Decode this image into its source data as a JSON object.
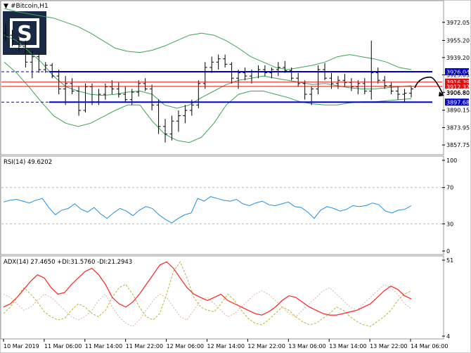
{
  "window_title": "#Bitcoin,H1",
  "logo": {
    "letters": "S",
    "name": "broker-logo"
  },
  "colors": {
    "price_bars": "#000000",
    "bollinger": "#3aa356",
    "support_resistance": "#0000cc",
    "red_levels": "#e01010",
    "arrow": "#000000",
    "rsi": "#1e8fe0",
    "adx_main": "#ff2020",
    "plus_di": "#b8b530",
    "minus_di": "#e0b0a0",
    "level_badge": "#0000cc",
    "red_badge": "#e01010"
  },
  "chart_data": [
    {
      "type": "candlestick",
      "name": "main-price",
      "symbol": "#Bitcoin",
      "timeframe": "H1",
      "x": [
        "10 Mar 2019",
        "11 Mar 06:00",
        "11 Mar 14:00",
        "11 Mar 22:00",
        "12 Mar 06:00",
        "12 Mar 14:00",
        "12 Mar 22:00",
        "13 Mar 06:00",
        "13 Mar 14:00",
        "13 Mar 22:00",
        "14 Mar 06:00"
      ],
      "ylim": [
        3850,
        3985
      ],
      "y_ticks": [
        "3972.05",
        "3955.20",
        "3939.20",
        "3923.05",
        "3906.80",
        "3890.15",
        "3873.95",
        "3857.75"
      ],
      "bars": [
        [
          3962,
          3970,
          3955,
          3960
        ],
        [
          3960,
          3965,
          3950,
          3955
        ],
        [
          3955,
          3958,
          3945,
          3950
        ],
        [
          3950,
          3955,
          3930,
          3935
        ],
        [
          3935,
          3945,
          3920,
          3940
        ],
        [
          3940,
          3943,
          3925,
          3928
        ],
        [
          3928,
          3935,
          3925,
          3932
        ],
        [
          3932,
          3934,
          3920,
          3922
        ],
        [
          3922,
          3928,
          3905,
          3910
        ],
        [
          3910,
          3922,
          3895,
          3915
        ],
        [
          3915,
          3920,
          3905,
          3908
        ],
        [
          3908,
          3912,
          3885,
          3890
        ],
        [
          3890,
          3915,
          3888,
          3912
        ],
        [
          3912,
          3915,
          3895,
          3898
        ],
        [
          3898,
          3910,
          3895,
          3905
        ],
        [
          3905,
          3915,
          3900,
          3912
        ],
        [
          3912,
          3918,
          3905,
          3910
        ],
        [
          3910,
          3916,
          3902,
          3905
        ],
        [
          3905,
          3912,
          3898,
          3900
        ],
        [
          3900,
          3910,
          3895,
          3907
        ],
        [
          3907,
          3918,
          3903,
          3915
        ],
        [
          3915,
          3920,
          3908,
          3910
        ],
        [
          3910,
          3914,
          3890,
          3895
        ],
        [
          3895,
          3900,
          3868,
          3875
        ],
        [
          3875,
          3882,
          3860,
          3868
        ],
        [
          3868,
          3885,
          3862,
          3880
        ],
        [
          3880,
          3890,
          3870,
          3885
        ],
        [
          3885,
          3895,
          3878,
          3890
        ],
        [
          3890,
          3900,
          3885,
          3895
        ],
        [
          3895,
          3918,
          3892,
          3915
        ],
        [
          3915,
          3935,
          3910,
          3930
        ],
        [
          3930,
          3940,
          3925,
          3935
        ],
        [
          3935,
          3942,
          3928,
          3938
        ],
        [
          3938,
          3942,
          3930,
          3933
        ],
        [
          3933,
          3935,
          3915,
          3920
        ],
        [
          3920,
          3928,
          3910,
          3925
        ],
        [
          3925,
          3930,
          3918,
          3922
        ],
        [
          3922,
          3928,
          3915,
          3926
        ],
        [
          3926,
          3932,
          3920,
          3928
        ],
        [
          3928,
          3932,
          3922,
          3925
        ],
        [
          3925,
          3930,
          3920,
          3928
        ],
        [
          3928,
          3935,
          3922,
          3930
        ],
        [
          3930,
          3936,
          3925,
          3927
        ],
        [
          3927,
          3930,
          3918,
          3920
        ],
        [
          3920,
          3925,
          3912,
          3915
        ],
        [
          3915,
          3918,
          3900,
          3905
        ],
        [
          3905,
          3912,
          3895,
          3910
        ],
        [
          3910,
          3932,
          3905,
          3928
        ],
        [
          3928,
          3934,
          3918,
          3920
        ],
        [
          3920,
          3925,
          3910,
          3915
        ],
        [
          3915,
          3922,
          3910,
          3918
        ],
        [
          3918,
          3924,
          3912,
          3916
        ],
        [
          3916,
          3920,
          3908,
          3912
        ],
        [
          3912,
          3918,
          3905,
          3915
        ],
        [
          3915,
          3920,
          3905,
          3908
        ],
        [
          3908,
          3955,
          3900,
          3925
        ],
        [
          3925,
          3930,
          3915,
          3918
        ],
        [
          3918,
          3922,
          3910,
          3913
        ],
        [
          3913,
          3916,
          3905,
          3908
        ],
        [
          3908,
          3912,
          3900,
          3905
        ],
        [
          3905,
          3910,
          3898,
          3906
        ],
        [
          3906,
          3912,
          3902,
          3910
        ]
      ],
      "bollinger": {
        "upper": [
          3985,
          3982,
          3980,
          3978,
          3976,
          3972,
          3968,
          3962,
          3955,
          3948,
          3945,
          3944,
          3946,
          3950,
          3955,
          3960,
          3962,
          3960,
          3955,
          3948,
          3940,
          3935,
          3930,
          3928,
          3930,
          3932,
          3935,
          3940,
          3942,
          3940,
          3938,
          3935,
          3930,
          3928
        ],
        "middle": [
          3960,
          3955,
          3945,
          3935,
          3922,
          3912,
          3908,
          3905,
          3904,
          3905,
          3907,
          3908,
          3905,
          3895,
          3892,
          3895,
          3902,
          3908,
          3914,
          3918,
          3920,
          3922,
          3920,
          3918,
          3916,
          3914,
          3915,
          3913,
          3911,
          3910,
          3910,
          3911,
          3912,
          3913
        ],
        "lower": [
          3935,
          3925,
          3912,
          3898,
          3885,
          3878,
          3875,
          3878,
          3884,
          3890,
          3895,
          3895,
          3880,
          3868,
          3862,
          3860,
          3865,
          3878,
          3895,
          3905,
          3908,
          3908,
          3905,
          3902,
          3898,
          3896,
          3895,
          3895,
          3897,
          3898,
          3898,
          3899,
          3900,
          3901
        ]
      },
      "levels": [
        {
          "name": "resistance",
          "value": 3926.04,
          "label": "3926.04",
          "kind": "blue"
        },
        {
          "name": "red-upper",
          "value": 3916.39,
          "label": "3916.39",
          "kind": "red"
        },
        {
          "name": "red-lower",
          "value": 3912.32,
          "label": "3912.32",
          "kind": "red"
        },
        {
          "name": "support",
          "value": 3897.68,
          "label": "3897.68",
          "kind": "blue"
        }
      ],
      "current_price": "3906.80",
      "projected_path": [
        3911,
        3921,
        3916,
        3905
      ]
    },
    {
      "type": "line",
      "name": "rsi",
      "title": "RSI(14) 49.6202",
      "ylim": [
        0,
        100
      ],
      "y_ticks": [
        "100",
        "70",
        "30",
        "0"
      ],
      "levels": [
        70,
        30
      ],
      "series": [
        {
          "name": "RSI",
          "values": [
            54,
            56,
            57,
            55,
            53,
            56,
            58,
            48,
            40,
            45,
            47,
            52,
            46,
            43,
            48,
            41,
            36,
            42,
            47,
            44,
            39,
            45,
            49,
            47,
            40,
            35,
            31,
            36,
            40,
            42,
            58,
            55,
            60,
            58,
            56,
            55,
            57,
            52,
            50,
            53,
            55,
            51,
            50,
            52,
            54,
            49,
            48,
            43,
            36,
            45,
            49,
            47,
            44,
            46,
            50,
            49,
            50,
            53,
            51,
            44,
            42,
            45,
            46,
            50
          ]
        }
      ]
    },
    {
      "type": "line",
      "name": "adx",
      "title": "ADX(14) 27.4650 +DI:31.5760 -DI:21.2943",
      "ylim": [
        4,
        51
      ],
      "y_ticks": [
        "51",
        "4"
      ],
      "series": [
        {
          "name": "ADX",
          "values": [
            22,
            24,
            28,
            33,
            38,
            42,
            40,
            34,
            30,
            31,
            36,
            40,
            44,
            46,
            42,
            36,
            28,
            24,
            22,
            25,
            30,
            36,
            42,
            48,
            50,
            46,
            40,
            34,
            30,
            28,
            26,
            28,
            30,
            26,
            24,
            22,
            20,
            18,
            17,
            19,
            22,
            26,
            29,
            28,
            25,
            22,
            20,
            18,
            17,
            17,
            18,
            19,
            20,
            22,
            24,
            28,
            32,
            35,
            33,
            29,
            27
          ]
        },
        {
          "name": "+DI",
          "values": [
            18,
            22,
            28,
            34,
            30,
            25,
            19,
            16,
            14,
            15,
            20,
            24,
            22,
            18,
            16,
            20,
            28,
            34,
            36,
            30,
            22,
            16,
            14,
            18,
            30,
            44,
            50,
            40,
            28,
            22,
            20,
            19,
            24,
            30,
            26,
            20,
            15,
            12,
            11,
            14,
            18,
            22,
            20,
            16,
            13,
            11,
            12,
            15,
            18,
            22,
            20,
            16,
            13,
            11,
            10,
            13,
            16,
            20,
            26,
            30,
            32
          ]
        },
        {
          "name": "-DI",
          "values": [
            30,
            28,
            24,
            20,
            22,
            26,
            30,
            28,
            24,
            20,
            16,
            14,
            16,
            20,
            26,
            30,
            22,
            16,
            12,
            10,
            14,
            20,
            26,
            30,
            28,
            22,
            16,
            14,
            20,
            26,
            28,
            24,
            20,
            16,
            18,
            22,
            26,
            30,
            32,
            30,
            26,
            22,
            18,
            16,
            20,
            24,
            28,
            32,
            34,
            30,
            26,
            22,
            20,
            24,
            28,
            32,
            36,
            34,
            30,
            24,
            21
          ]
        }
      ]
    }
  ]
}
